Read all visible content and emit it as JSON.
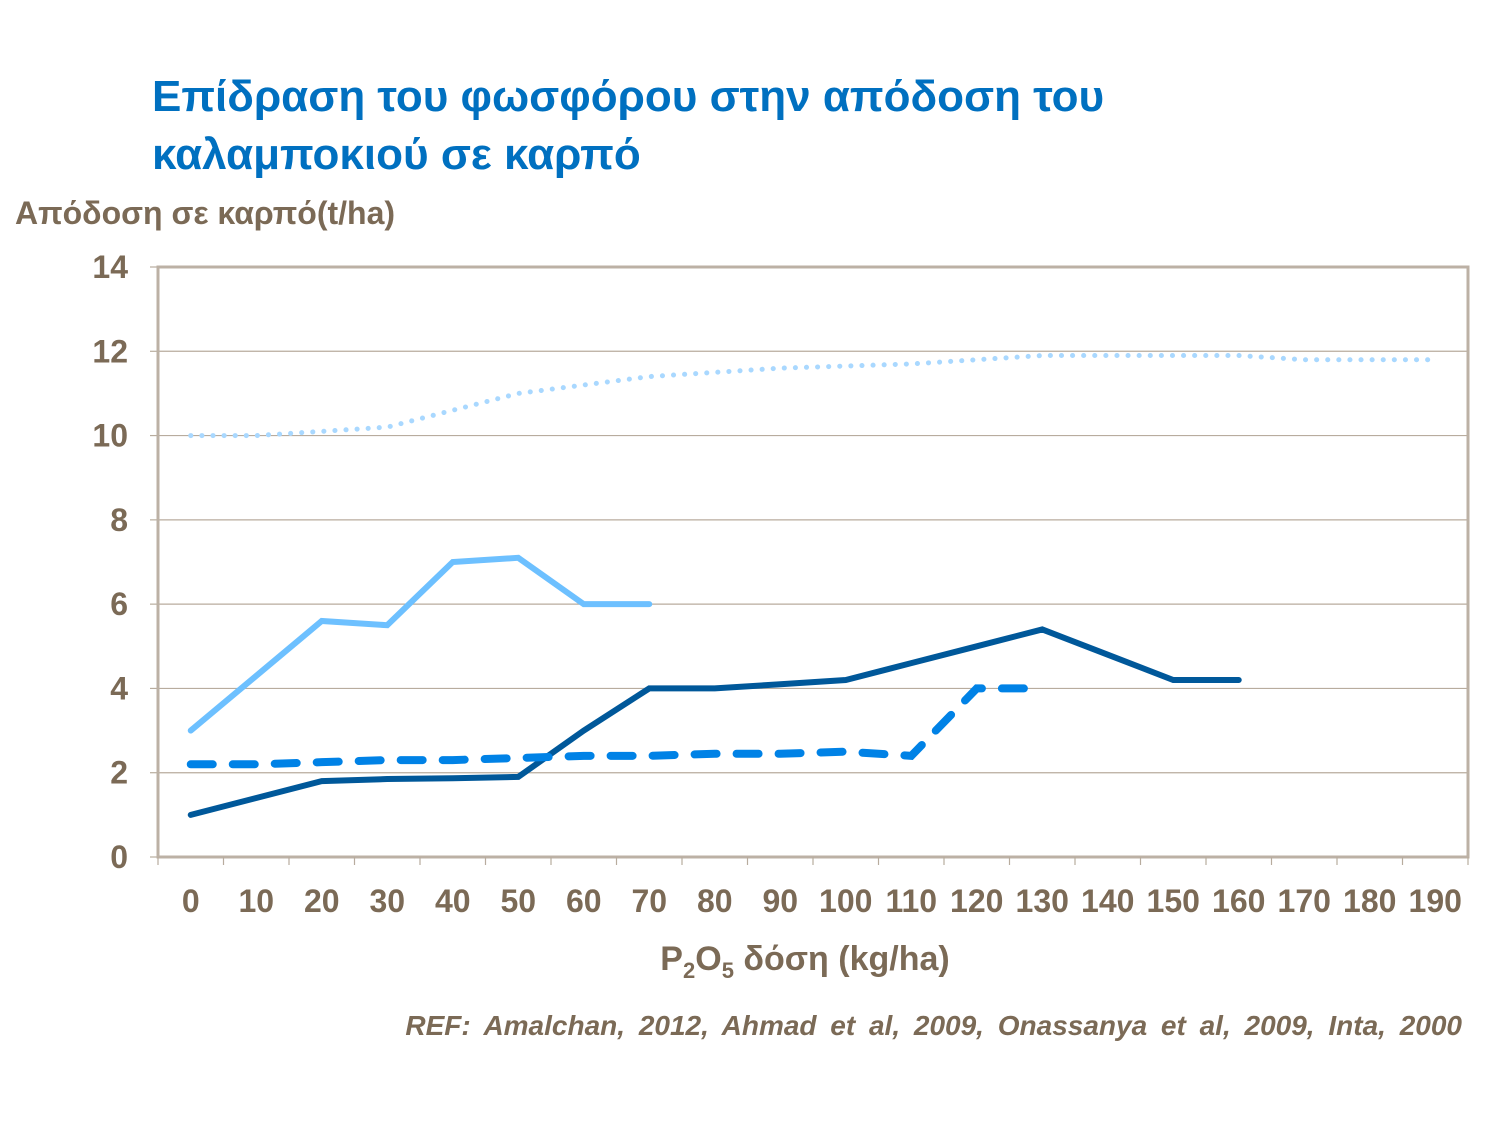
{
  "chart_data": {
    "type": "line",
    "title": "Επίδραση του φωσφόρου στην απόδοση του καλαμποκιού σε καρπό",
    "title_lines": [
      "Επίδραση του φωσφόρου στην απόδοση του",
      "καλαμποκιού σε καρπό"
    ],
    "ylabel": "Απόδοση σε καρπό(t/ha)",
    "xlabel_parts": {
      "p": "P",
      "sub2": "2",
      "o": "O",
      "sub5": "5",
      "rest": " δόση (kg/ha)"
    },
    "reference": "REF: Amalchan, 2012, Ahmad et al, 2009, Onassanya et al, 2009, Inta, 2000",
    "categories": [
      "0",
      "10",
      "20",
      "30",
      "40",
      "50",
      "60",
      "70",
      "80",
      "90",
      "100",
      "110",
      "120",
      "130",
      "140",
      "150",
      "160",
      "170",
      "180",
      "190"
    ],
    "ylim": [
      0,
      14
    ],
    "yticks": [
      "0",
      "2",
      "4",
      "6",
      "8",
      "10",
      "12",
      "14"
    ],
    "grid": true,
    "legend": "none",
    "series": [
      {
        "name": "series-dotted",
        "style": "dotted",
        "color": "#A9D8FF",
        "values": [
          10,
          10,
          10.1,
          10.2,
          10.6,
          11,
          11.2,
          11.4,
          11.5,
          11.6,
          11.65,
          11.7,
          11.8,
          11.9,
          11.9,
          11.9,
          11.9,
          11.8,
          11.8,
          11.8
        ]
      },
      {
        "name": "series-light",
        "style": "solid",
        "color": "#6DC0FF",
        "values": [
          3,
          4.3,
          5.6,
          5.5,
          7,
          7.1,
          6,
          6,
          null,
          null,
          null,
          null,
          null,
          null,
          null,
          null,
          null,
          null,
          null,
          null
        ]
      },
      {
        "name": "series-dark",
        "style": "solid",
        "color": "#00589A",
        "values": [
          1,
          1.4,
          1.8,
          1.85,
          1.87,
          1.9,
          3,
          4,
          4,
          4.1,
          4.2,
          4.6,
          5,
          5.4,
          4.8,
          4.2,
          4.2,
          null,
          null,
          null
        ]
      },
      {
        "name": "series-dashed",
        "style": "dashed",
        "color": "#0082E6",
        "values": [
          2.2,
          2.2,
          2.25,
          2.3,
          2.3,
          2.35,
          2.4,
          2.4,
          2.45,
          2.45,
          2.5,
          2.4,
          4,
          4,
          null,
          null,
          null,
          null,
          null,
          null
        ]
      }
    ]
  }
}
